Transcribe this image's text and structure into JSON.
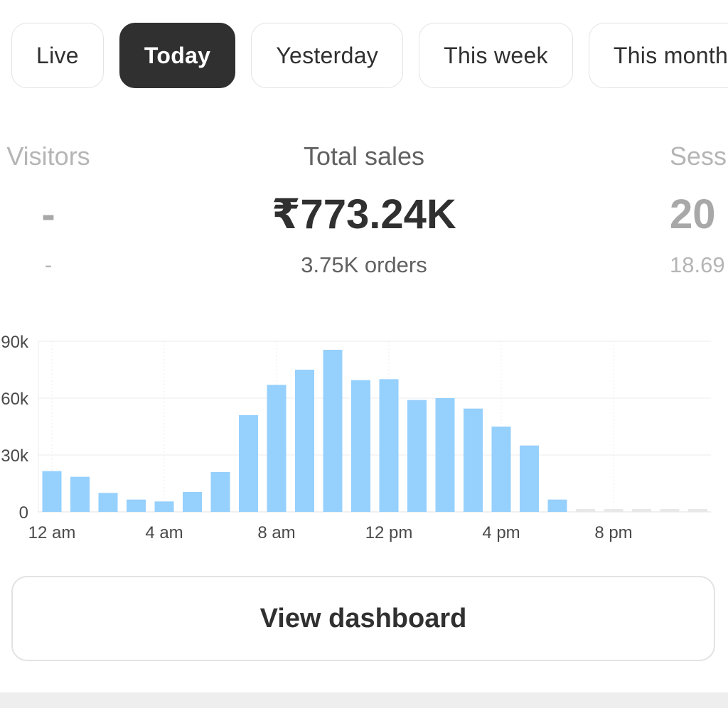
{
  "tabs": [
    {
      "label": "Live",
      "active": false
    },
    {
      "label": "Today",
      "active": true
    },
    {
      "label": "Yesterday",
      "active": false
    },
    {
      "label": "This week",
      "active": false
    },
    {
      "label": "This month",
      "active": false
    }
  ],
  "metrics": {
    "visitors": {
      "label": "Visitors",
      "value": "-",
      "sub": "-"
    },
    "total_sales": {
      "label": "Total sales",
      "value": "₹773.24K",
      "sub": "3.75K orders"
    },
    "sessions": {
      "label": "Sessions",
      "value": "20",
      "sub": "18.69"
    }
  },
  "chart_data": {
    "type": "bar",
    "title": "",
    "xlabel": "",
    "ylabel": "",
    "ylim": [
      0,
      90
    ],
    "y_ticks": [
      "0",
      "30k",
      "60k",
      "90k"
    ],
    "y_tick_values": [
      0,
      30,
      60,
      90
    ],
    "x_tick_labels": [
      "12 am",
      "4 am",
      "8 am",
      "12 pm",
      "4 pm",
      "8 pm"
    ],
    "x_tick_hours": [
      0,
      4,
      8,
      12,
      16,
      20
    ],
    "hours": [
      0,
      1,
      2,
      3,
      4,
      5,
      6,
      7,
      8,
      9,
      10,
      11,
      12,
      13,
      14,
      15,
      16,
      17,
      18,
      19,
      20,
      21,
      22,
      23
    ],
    "values": [
      21.5,
      18.5,
      10,
      6.5,
      5.5,
      10.5,
      21,
      51,
      67,
      75,
      85.5,
      69.5,
      70,
      59,
      60,
      54.5,
      45,
      35,
      6.5,
      null,
      null,
      null,
      null,
      null
    ],
    "grid": true,
    "colors": {
      "bar": "#96d0fd",
      "empty": "#e8e8e8",
      "grid": "#ececec",
      "text": "#4a4a4a"
    }
  },
  "button": {
    "label": "View dashboard"
  }
}
